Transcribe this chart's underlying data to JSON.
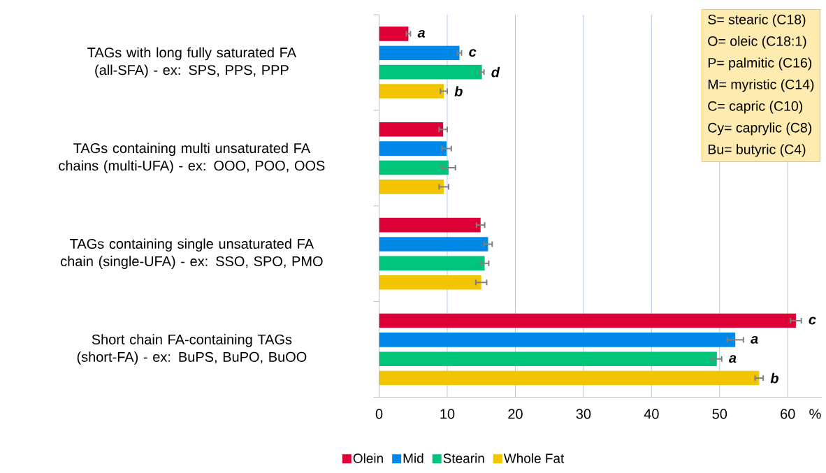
{
  "chart_data": {
    "type": "bar",
    "orientation": "horizontal",
    "xlabel": "%",
    "categories": [
      "TAGs with long fully saturated FA (all-SFA) - ex: SPS, PPS, PPP",
      "TAGs containing multi unsaturated FA chains (multi-UFA) - ex: OOO, POO, OOS",
      "TAGs containing single unsaturated FA chain (single-UFA) - ex: SSO, SPO, PMO",
      "Short chain FA-containing TAGs (short-FA) - ex: BuPS, BuPO, BuOO"
    ],
    "series": [
      {
        "name": "Olein",
        "color": "#dc0036",
        "values": [
          4.3,
          9.4,
          14.9,
          61.2
        ],
        "errors": [
          0.3,
          0.6,
          0.6,
          0.8
        ],
        "value_labels": [
          "a",
          null,
          null,
          "c"
        ]
      },
      {
        "name": "Mid",
        "color": "#0088e8",
        "values": [
          11.8,
          9.9,
          16.0,
          52.3
        ],
        "errors": [
          0.3,
          0.7,
          0.6,
          1.2
        ],
        "value_labels": [
          "c",
          null,
          null,
          "a"
        ]
      },
      {
        "name": "Stearin",
        "color": "#00c47a",
        "values": [
          15.1,
          10.2,
          15.5,
          49.6
        ],
        "errors": [
          0.3,
          1.0,
          0.6,
          0.7
        ],
        "value_labels": [
          "d",
          null,
          null,
          "a"
        ]
      },
      {
        "name": "Whole Fat",
        "color": "#f2c500",
        "values": [
          9.5,
          9.5,
          15.0,
          55.8
        ],
        "errors": [
          0.5,
          0.7,
          0.8,
          0.6
        ],
        "value_labels": [
          "b",
          null,
          null,
          "b"
        ]
      }
    ],
    "xlim": [
      0,
      65
    ],
    "xticks": [
      0,
      10,
      20,
      30,
      40,
      50,
      60
    ],
    "grid": "x",
    "legend": "bottom",
    "annotations": [
      "S= stearic (C18)",
      "O= oleic (C18:1)",
      "P= palmitic (C16)",
      "M= myristic (C14)",
      "C= capric (C10)",
      "Cy= caprylic (C8)",
      "Bu= butyric (C4)"
    ]
  }
}
